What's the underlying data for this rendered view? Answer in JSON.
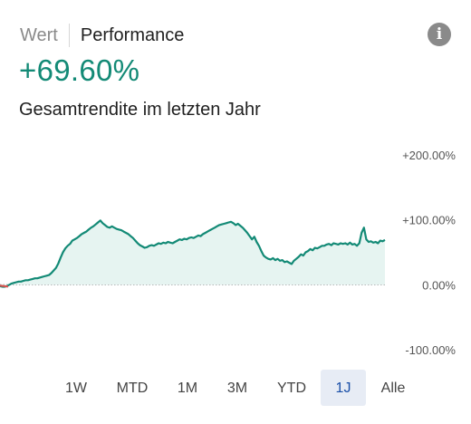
{
  "tabs": [
    {
      "label": "Wert",
      "active": false
    },
    {
      "label": "Performance",
      "active": true
    }
  ],
  "info_icon": {
    "name": "info-icon",
    "glyph": "i"
  },
  "headline": {
    "value": "+69.60%",
    "color": "#138a76"
  },
  "subtitle": "Gesamtrendite im letzten Jahr",
  "chart_data": {
    "type": "area",
    "y_ticks": [
      "+200.00%",
      "+100.00%",
      "0.00%",
      "-100.00%"
    ],
    "ylim": [
      -100,
      200
    ],
    "baseline": 0,
    "line_color": "#138a76",
    "fill_color": "#e6f4f1",
    "series": [
      {
        "values": [
          -2,
          -3,
          -3,
          -2,
          0,
          2,
          3,
          4,
          5,
          5,
          6,
          7,
          7,
          8,
          9,
          10,
          10,
          11,
          12,
          13,
          14,
          15,
          18,
          22,
          26,
          33,
          42,
          50,
          56,
          60,
          63,
          68,
          70,
          72,
          75,
          78,
          80,
          82,
          85,
          88,
          90,
          93,
          96,
          99,
          95,
          92,
          89,
          88,
          90,
          88,
          86,
          85,
          84,
          82,
          80,
          78,
          75,
          72,
          68,
          64,
          61,
          59,
          57,
          58,
          60,
          61,
          60,
          62,
          64,
          63,
          65,
          64,
          66,
          65,
          64,
          66,
          68,
          70,
          69,
          71,
          70,
          72,
          73,
          72,
          74,
          76,
          75,
          78,
          80,
          82,
          84,
          86,
          88,
          90,
          92,
          93,
          94,
          95,
          96,
          97,
          95,
          92,
          94,
          91,
          88,
          84,
          80,
          75,
          70,
          74,
          66,
          60,
          52,
          45,
          42,
          40,
          39,
          41,
          38,
          40,
          37,
          38,
          35,
          36,
          34,
          32,
          37,
          40,
          43,
          47,
          45,
          50,
          52,
          55,
          53,
          57,
          56,
          58,
          60,
          60,
          62,
          63,
          61,
          64,
          63,
          62,
          64,
          63,
          64,
          62,
          65,
          62,
          63,
          60,
          64,
          80,
          88,
          70,
          66,
          67,
          65,
          66,
          64,
          68,
          67,
          69
        ]
      }
    ]
  },
  "ranges": [
    {
      "label": "1W",
      "selected": false
    },
    {
      "label": "MTD",
      "selected": false
    },
    {
      "label": "1M",
      "selected": false
    },
    {
      "label": "3M",
      "selected": false
    },
    {
      "label": "YTD",
      "selected": false
    },
    {
      "label": "1J",
      "selected": true
    },
    {
      "label": "Alle",
      "selected": false
    }
  ]
}
